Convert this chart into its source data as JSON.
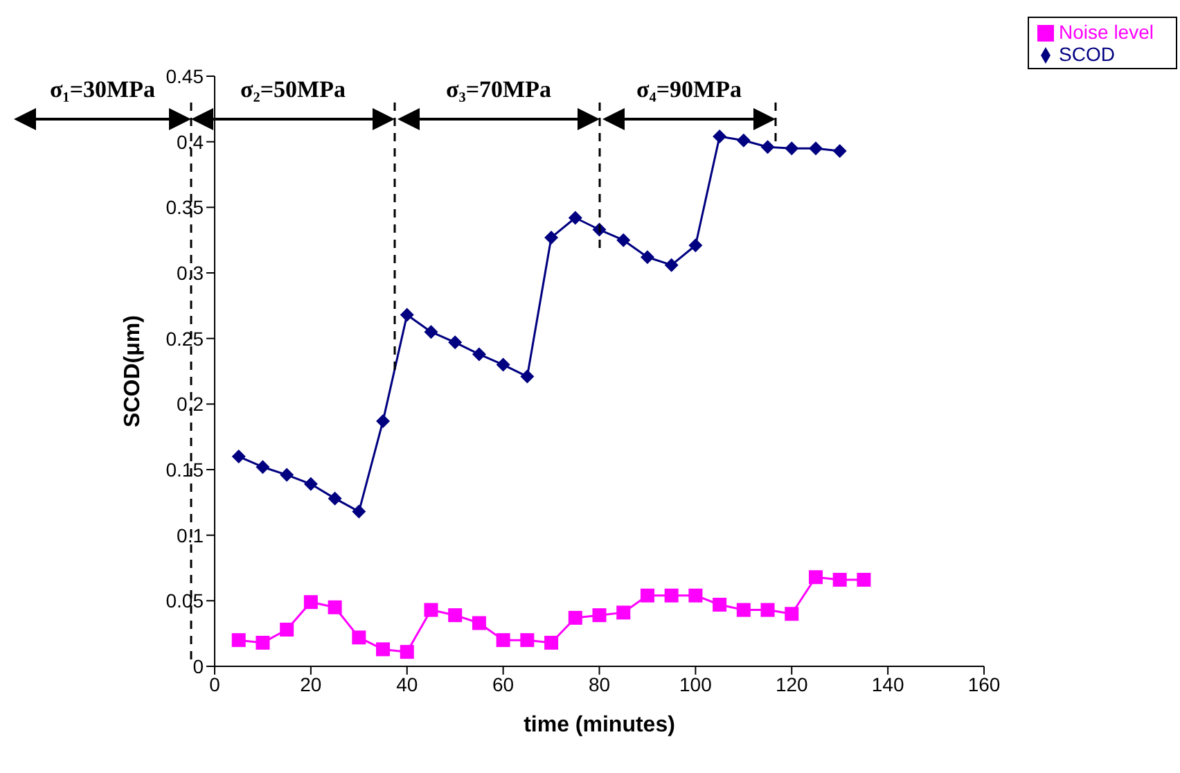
{
  "chart_data": {
    "type": "line",
    "xlabel": "time (minutes)",
    "ylabel": "SCOD(μm)",
    "xlim": [
      0,
      160
    ],
    "xticks": [
      0,
      20,
      40,
      60,
      80,
      100,
      120,
      140,
      160
    ],
    "ylim": [
      0,
      0.45
    ],
    "yticks": [
      0,
      0.05,
      0.1,
      0.15,
      0.2,
      0.25,
      0.3,
      0.35,
      0.4,
      0.45
    ],
    "grid": false,
    "legend": "top right",
    "line_style": "solid",
    "annotations": [
      "σ₁=30MPa",
      "σ₂=50MPa",
      "σ₃=70MPa",
      "σ₄=90MPa"
    ],
    "series": [
      {
        "name": "SCOD",
        "color": "#000080",
        "marker": "diamond",
        "x": [
          5,
          10,
          15,
          20,
          25,
          30,
          35,
          40,
          45,
          50,
          55,
          60,
          65,
          70,
          75,
          80,
          85,
          90,
          95,
          100,
          105,
          110,
          115,
          120,
          125,
          130
        ],
        "values": [
          0.16,
          0.152,
          0.146,
          0.139,
          0.128,
          0.118,
          0.187,
          0.268,
          0.255,
          0.247,
          0.238,
          0.23,
          0.221,
          0.327,
          0.342,
          0.333,
          0.325,
          0.312,
          0.306,
          0.321,
          0.404,
          0.401,
          0.396,
          0.395,
          0.395,
          0.393
        ]
      },
      {
        "name": "Noise level",
        "color": "#ff00ff",
        "marker": "square",
        "x": [
          5,
          10,
          15,
          20,
          25,
          30,
          35,
          40,
          45,
          50,
          55,
          60,
          65,
          70,
          75,
          80,
          85,
          90,
          95,
          100,
          105,
          110,
          115,
          120,
          125,
          130,
          135
        ],
        "values": [
          0.02,
          0.018,
          0.028,
          0.049,
          0.045,
          0.022,
          0.013,
          0.011,
          0.043,
          0.039,
          0.033,
          0.02,
          0.02,
          0.018,
          0.037,
          0.039,
          0.041,
          0.054,
          0.054,
          0.054,
          0.047,
          0.043,
          0.043,
          0.04,
          0.068,
          0.066,
          0.066
        ]
      }
    ]
  }
}
